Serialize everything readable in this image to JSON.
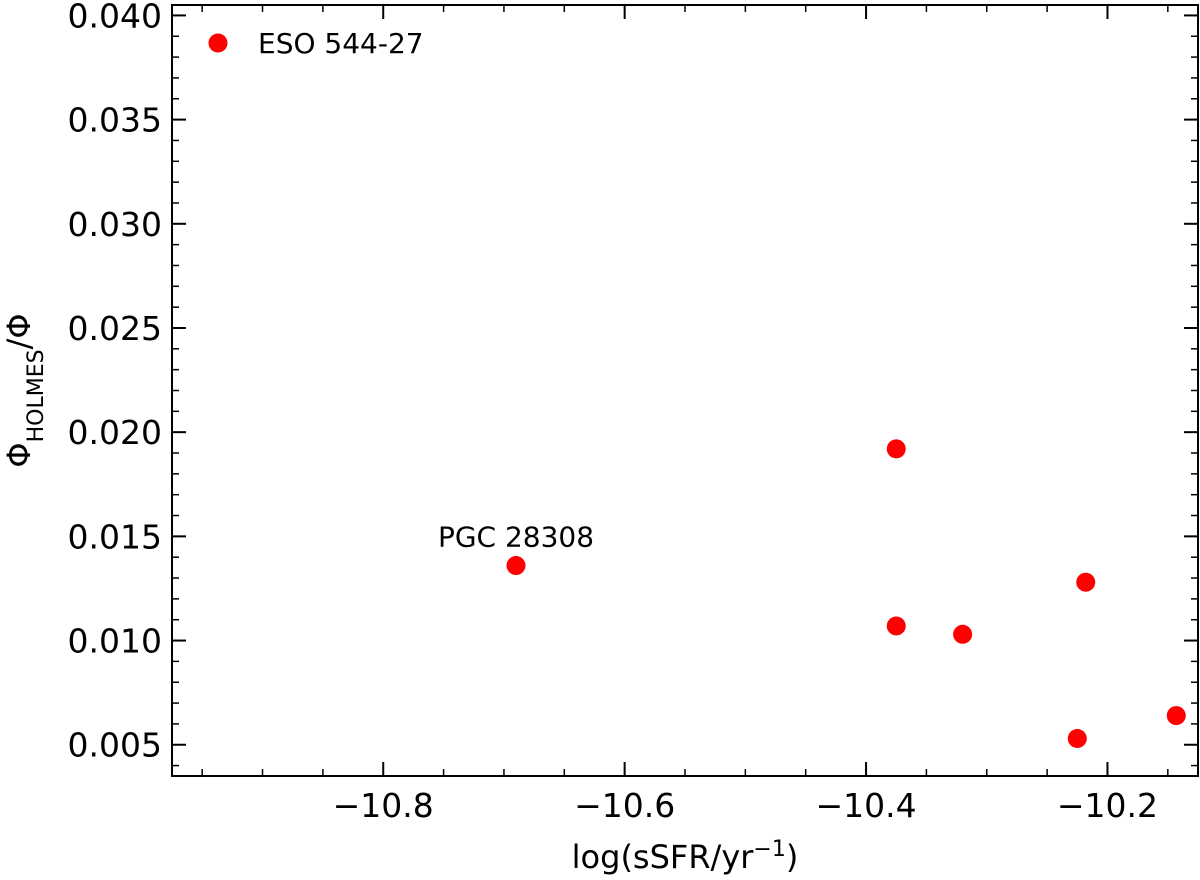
{
  "chart_data": {
    "type": "scatter",
    "xlabel": "log(sSFR/yr",
    "xlabel_sup": "−1",
    "xlabel_close": ")",
    "ylabel": "Φ",
    "ylabel_sub": "HOLMES",
    "ylabel_tail": "/Φ",
    "xlim": [
      -10.975,
      -10.125
    ],
    "ylim": [
      0.0035,
      0.0405
    ],
    "x_ticks": [
      {
        "value": -10.8,
        "label": "−10.8"
      },
      {
        "value": -10.6,
        "label": "−10.6"
      },
      {
        "value": -10.4,
        "label": "−10.4"
      },
      {
        "value": -10.2,
        "label": "−10.2"
      }
    ],
    "y_ticks": [
      {
        "value": 0.005,
        "label": "0.005"
      },
      {
        "value": 0.01,
        "label": "0.010"
      },
      {
        "value": 0.015,
        "label": "0.015"
      },
      {
        "value": 0.02,
        "label": "0.020"
      },
      {
        "value": 0.025,
        "label": "0.025"
      },
      {
        "value": 0.03,
        "label": "0.030"
      },
      {
        "value": 0.035,
        "label": "0.035"
      },
      {
        "value": 0.04,
        "label": "0.040"
      }
    ],
    "x_minor_step": 0.05,
    "y_minor_step": 0.001,
    "grid": false,
    "legend_position": "top-left",
    "series": [
      {
        "name": "ESO 544-27",
        "color": "#ff0000",
        "points": [
          {
            "x": -10.69,
            "y": 0.0136
          },
          {
            "x": -10.375,
            "y": 0.0192
          },
          {
            "x": -10.375,
            "y": 0.0107
          },
          {
            "x": -10.32,
            "y": 0.0103
          },
          {
            "x": -10.218,
            "y": 0.0128
          },
          {
            "x": -10.225,
            "y": 0.0053
          },
          {
            "x": -10.143,
            "y": 0.0064
          }
        ]
      }
    ],
    "annotations": [
      {
        "text": "PGC 28308",
        "x": -10.69,
        "y": 0.0136
      }
    ]
  }
}
